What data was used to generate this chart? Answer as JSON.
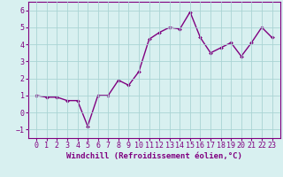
{
  "x": [
    0,
    1,
    2,
    3,
    4,
    5,
    6,
    7,
    8,
    9,
    10,
    11,
    12,
    13,
    14,
    15,
    16,
    17,
    18,
    19,
    20,
    21,
    22,
    23
  ],
  "y": [
    1.0,
    0.9,
    0.9,
    0.7,
    0.7,
    -0.8,
    1.0,
    1.0,
    1.9,
    1.6,
    2.4,
    4.3,
    4.7,
    5.0,
    4.9,
    5.9,
    4.4,
    3.5,
    3.8,
    4.1,
    3.3,
    4.1,
    5.0,
    4.4
  ],
  "line_color": "#800080",
  "marker": "D",
  "marker_size": 2.0,
  "line_width": 1.0,
  "bg_color": "#d8f0f0",
  "grid_color": "#aad4d4",
  "xlabel": "Windchill (Refroidissement éolien,°C)",
  "xlabel_fontsize": 6.5,
  "tick_fontsize": 6.0,
  "ylim": [
    -1.5,
    6.5
  ],
  "yticks": [
    -1,
    0,
    1,
    2,
    3,
    4,
    5,
    6
  ],
  "xlim": [
    -0.8,
    23.8
  ],
  "text_color": "#800080",
  "spine_color": "#800080"
}
